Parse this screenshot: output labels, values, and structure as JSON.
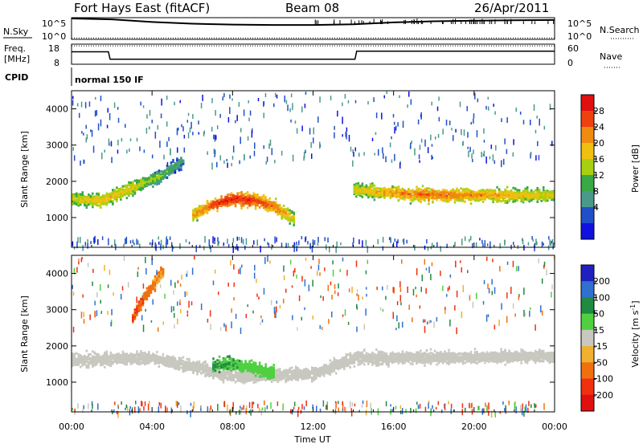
{
  "header": {
    "radar": "Fort Hays East (fitACF)",
    "beam": "Beam 08",
    "date": "26/Apr/2011"
  },
  "top_panels": {
    "nsky": {
      "label": "N.Sky",
      "right_label": "N.Search",
      "left_ticks": [
        "10^5",
        "10^0"
      ],
      "right_ticks": [
        "10^5",
        "10^0"
      ]
    },
    "freq": {
      "label1": "Freq.",
      "label2": "[MHz]",
      "right_label": "Nave",
      "left_ticks": [
        "18",
        "8"
      ],
      "right_ticks": [
        "60",
        "0"
      ]
    },
    "cpid": {
      "label": "CPID",
      "value": "normal 150 IF"
    }
  },
  "axes": {
    "x_ticks": [
      "00:00",
      "04:00",
      "08:00",
      "12:00",
      "16:00",
      "20:00",
      "00:00"
    ],
    "xlabel": "Time UT",
    "ylabel": "Slant Range [km]",
    "y_ticks": [
      "1000",
      "2000",
      "3000",
      "4000"
    ]
  },
  "colorbars": {
    "power": {
      "label": "Power [dB]",
      "ticks": [
        "4",
        "8",
        "12",
        "16",
        "20",
        "24",
        "28"
      ],
      "colors": [
        "#1010e0",
        "#2050c8",
        "#4a9a8a",
        "#3aa845",
        "#a8d010",
        "#f0c010",
        "#f08a10",
        "#f04010",
        "#e01010"
      ]
    },
    "velocity": {
      "label": "Velocity [m s",
      "label_sup": "-1",
      "label_end": "]",
      "ticks": [
        "200",
        "100",
        "50",
        "15",
        "-15",
        "-50",
        "-100",
        "-200"
      ],
      "colors": [
        "#2020c0",
        "#3070d0",
        "#208a40",
        "#50d040",
        "#c8c8c0",
        "#f0b030",
        "#f07010",
        "#f03010",
        "#e01010"
      ]
    }
  },
  "chart_data": [
    {
      "type": "line",
      "title": "N.Sky",
      "x": [
        "00:00",
        "02:00",
        "04:00",
        "06:00",
        "08:00",
        "10:00",
        "12:00",
        "14:00",
        "16:00",
        "18:00",
        "20:00",
        "22:00",
        "24:00"
      ],
      "series": [
        {
          "name": "N.Sky",
          "values": [
            100000,
            40000,
            10000,
            4000,
            2500,
            2000,
            2000,
            3000,
            8000,
            15000,
            20000,
            25000,
            30000
          ]
        },
        {
          "name": "N.Search",
          "values": [
            2,
            2,
            2,
            2,
            2,
            2,
            2,
            2,
            2,
            2,
            2,
            2,
            2
          ]
        }
      ],
      "ylim": [
        1,
        100000
      ],
      "yscale": "log"
    },
    {
      "type": "line",
      "title": "Freq.",
      "series": [
        {
          "name": "Freq. [MHz]",
          "points": [
            [
              "00:00",
              14.2
            ],
            [
              "01:50",
              14.2
            ],
            [
              "01:55",
              10.5
            ],
            [
              "14:05",
              10.5
            ],
            [
              "14:10",
              14.5
            ],
            [
              "24:00",
              14.5
            ]
          ]
        },
        {
          "name": "Nave",
          "values_const": 55
        }
      ],
      "ylim": [
        8,
        18
      ],
      "y2lim": [
        0,
        60
      ]
    },
    {
      "type": "heatmap",
      "title": "Power [dB]",
      "x_range_hours": [
        0,
        24
      ],
      "y_range_km": [
        180,
        4500
      ],
      "value_range": [
        0,
        30
      ],
      "features": [
        {
          "name": "morning band",
          "x": [
            0.0,
            1.5,
            3.0,
            4.5,
            5.5
          ],
          "y_km": [
            1550,
            1500,
            1850,
            2200,
            2600
          ],
          "power_db": [
            18,
            20,
            18,
            14,
            10
          ]
        },
        {
          "name": "afternoon band",
          "x": [
            14.0,
            16.0,
            18.0,
            20.0,
            22.0,
            24.0
          ],
          "y_km": [
            1800,
            1700,
            1650,
            1650,
            1650,
            1650
          ],
          "power_db": [
            18,
            22,
            24,
            22,
            20,
            18
          ]
        },
        {
          "name": "midday patch",
          "x": [
            6.0,
            7.0,
            8.0,
            9.0,
            10.0,
            11.0
          ],
          "y_km": [
            1100,
            1400,
            1550,
            1500,
            1350,
            1000
          ],
          "power_db": [
            20,
            26,
            28,
            26,
            24,
            18
          ]
        }
      ]
    },
    {
      "type": "heatmap",
      "title": "Velocity [m s-1]",
      "x_range_hours": [
        0,
        24
      ],
      "y_range_km": [
        180,
        4500
      ],
      "value_range": [
        -200,
        200
      ],
      "features": [
        {
          "name": "low-velocity ground scatter band",
          "x": [
            0.0,
            4.0,
            8.0,
            12.0,
            14.0,
            18.0,
            24.0
          ],
          "y_km": [
            1650,
            1700,
            1200,
            1250,
            1700,
            1700,
            1750
          ],
          "velocity": [
            0,
            0,
            0,
            0,
            0,
            0,
            0
          ]
        },
        {
          "name": "negative-velocity streak",
          "x": [
            3.0,
            3.5,
            4.0,
            4.5
          ],
          "y_km": [
            2800,
            3300,
            3700,
            4100
          ],
          "velocity": [
            -100,
            -100,
            -50,
            -50
          ]
        },
        {
          "name": "positive-velocity patch",
          "x": [
            7.0,
            8.0,
            9.0,
            10.0
          ],
          "y_km": [
            1500,
            1550,
            1400,
            1300
          ],
          "velocity": [
            50,
            50,
            30,
            30
          ]
        }
      ]
    }
  ]
}
